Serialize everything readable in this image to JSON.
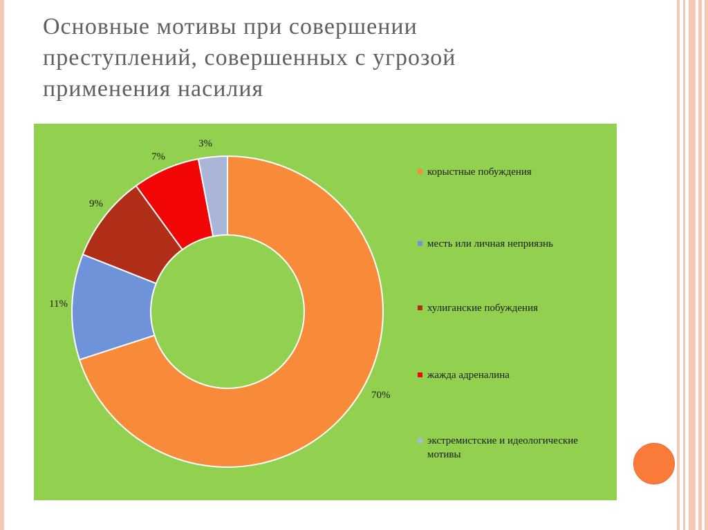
{
  "title": {
    "line1": "Основные мотивы при совершении",
    "line2": "преступлений, совершенных с угрозой",
    "line3": "применения насилия"
  },
  "theme": {
    "chart_background": "#92d050",
    "accent": "#fb7b3a",
    "edge_stripe": "#f6c6b6"
  },
  "chart_data": {
    "type": "pie",
    "donut": true,
    "legend_position": "right",
    "categories": [
      "корыстные побуждения",
      "месть или личная неприязнь",
      "хулиганские побуждения",
      "жажда адреналина",
      "экстремистские и идеологические мотивы"
    ],
    "values": [
      70,
      11,
      9,
      7,
      3
    ],
    "data_labels": [
      "70%",
      "11%",
      "9%",
      "7%",
      "3%"
    ],
    "colors": [
      "#f88b3a",
      "#6f93d8",
      "#b02e17",
      "#f20505",
      "#a9b6d8"
    ]
  }
}
